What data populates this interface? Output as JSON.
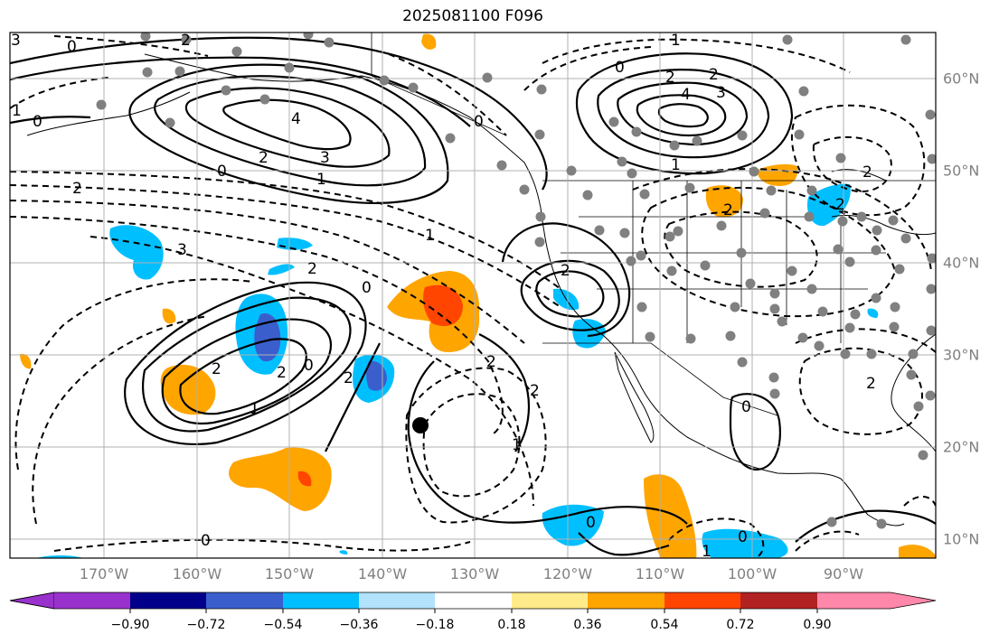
{
  "title": "2025081100 F096",
  "lon_labels": [
    "170°W",
    "160°W",
    "150°W",
    "140°W",
    "130°W",
    "120°W",
    "110°W",
    "100°W",
    "90°W"
  ],
  "lat_labels": [
    "60°N",
    "50°N",
    "40°N",
    "30°N",
    "20°N",
    "10°N"
  ],
  "colorbar": {
    "colors": [
      "#9932cc",
      "#00008b",
      "#3a5fcd",
      "#00bfff",
      "#b2e2fc",
      "#ffffff",
      "#ffeb8a",
      "#ffa500",
      "#ff4500",
      "#b22222",
      "#ff88aa"
    ],
    "tick_labels": [
      "−0.90",
      "−0.72",
      "−0.54",
      "−0.36",
      "−0.18",
      "0.18",
      "0.36",
      "0.54",
      "0.72",
      "0.90"
    ]
  },
  "contour_labels": [
    "3",
    "2",
    "0",
    "4",
    "3",
    "2",
    "1",
    "2",
    "0",
    "1",
    "0",
    "4",
    "3",
    "2",
    "2",
    "0",
    "2",
    "2",
    "3",
    "2",
    "1",
    "0",
    "2",
    "1",
    "2",
    "2",
    "2",
    "0",
    "0",
    "1",
    "2",
    "0",
    "1",
    "1",
    "0",
    "2",
    "2",
    "1",
    "2",
    "0",
    "0"
  ],
  "colors": {
    "contour": "#000000",
    "grid": "#b0b0b0",
    "station": "#808080",
    "coast": "#000000",
    "label": "#808080"
  }
}
